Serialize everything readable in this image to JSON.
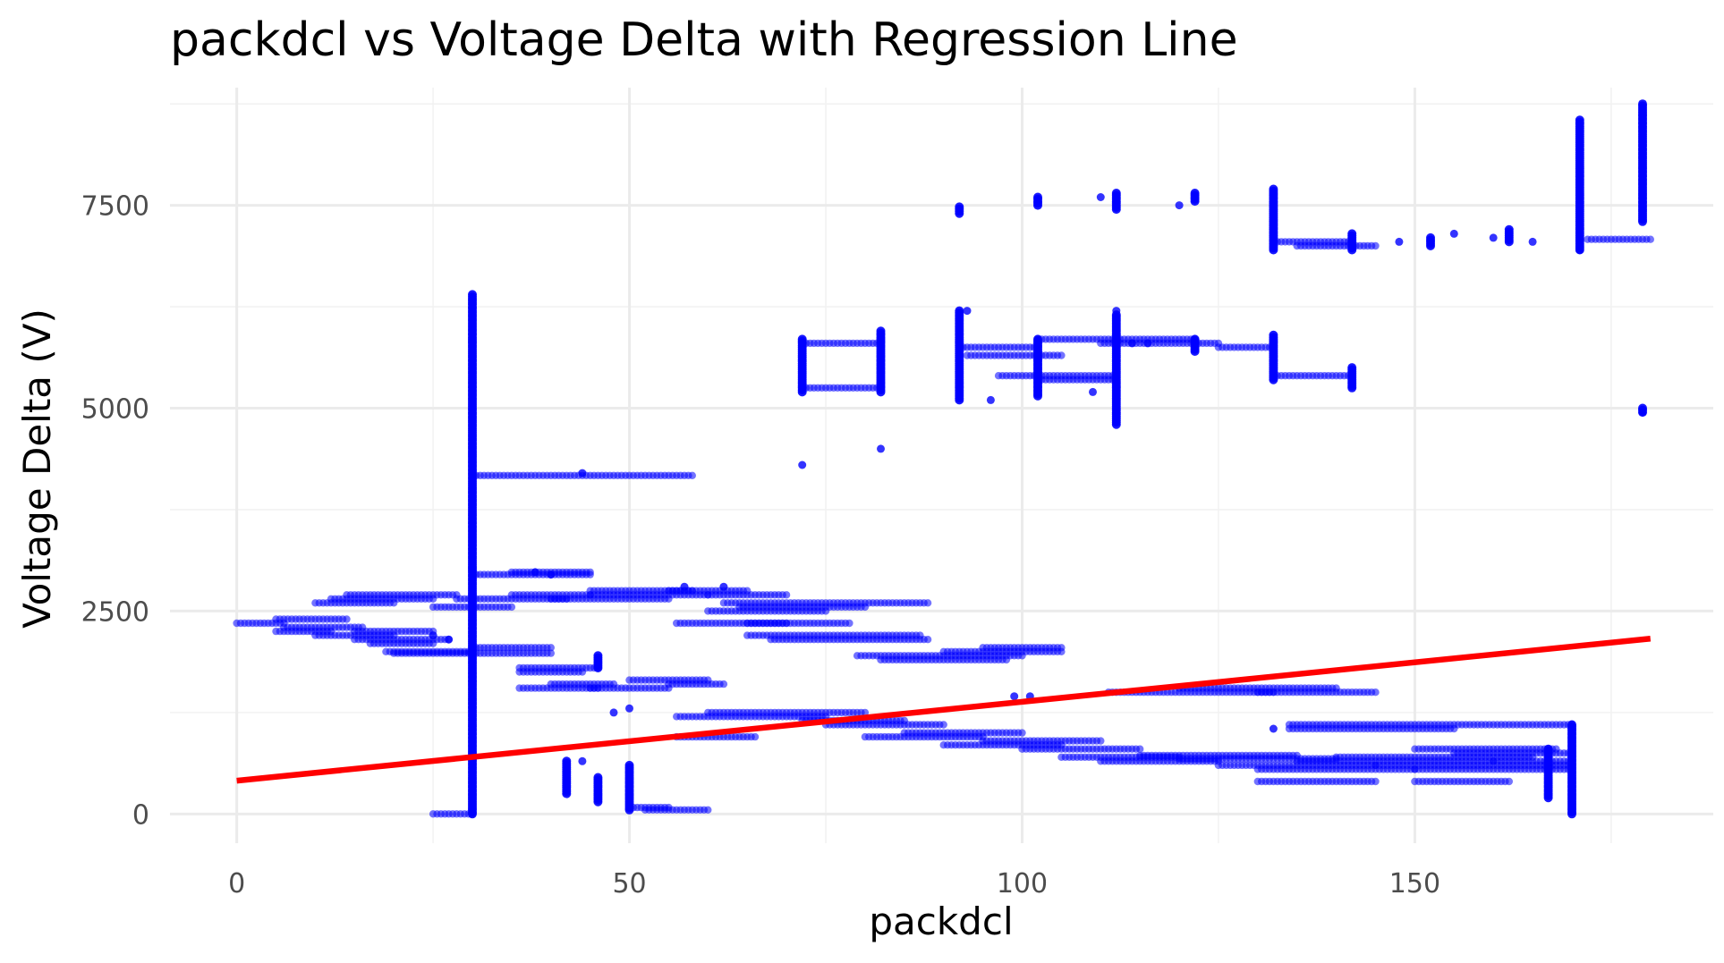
{
  "colors": {
    "points": "#0000ff",
    "regression": "#ff0000",
    "grid": "#ebebeb",
    "tick_text": "#4d4d4d"
  },
  "chart_data": {
    "type": "scatter",
    "title": "packdcl  vs Voltage Delta with Regression Line",
    "xlabel": "packdcl",
    "ylabel": "Voltage Delta (V)",
    "xlim": [
      -8.5,
      188
    ],
    "ylim": [
      -360,
      8950
    ],
    "x_ticks": [
      0,
      50,
      100,
      150
    ],
    "x_tick_labels": [
      "0",
      "50",
      "100",
      "150"
    ],
    "y_ticks": [
      0,
      2500,
      5000,
      7500
    ],
    "y_tick_labels": [
      "0",
      "2500",
      "5000",
      "7500"
    ],
    "grid": true,
    "legend": "none",
    "regression_line": {
      "x": [
        0,
        180
      ],
      "y": [
        410,
        2160
      ]
    },
    "horizontal_runs": [
      {
        "x": [
          0,
          6
        ],
        "y": 2350
      },
      {
        "x": [
          5,
          14
        ],
        "y": 2400
      },
      {
        "x": [
          5,
          12
        ],
        "y": 2250
      },
      {
        "x": [
          10,
          20
        ],
        "y": 2600
      },
      {
        "x": [
          12,
          25
        ],
        "y": 2650
      },
      {
        "x": [
          14,
          28
        ],
        "y": 2700
      },
      {
        "x": [
          6,
          16
        ],
        "y": 2300
      },
      {
        "x": [
          10,
          20
        ],
        "y": 2200
      },
      {
        "x": [
          15,
          25
        ],
        "y": 2250
      },
      {
        "x": [
          15,
          27
        ],
        "y": 2150
      },
      {
        "x": [
          17,
          25
        ],
        "y": 2100
      },
      {
        "x": [
          19,
          30
        ],
        "y": 2000
      },
      {
        "x": [
          20,
          40
        ],
        "y": 1980
      },
      {
        "x": [
          30,
          40
        ],
        "y": 2050
      },
      {
        "x": [
          25,
          35
        ],
        "y": 2550
      },
      {
        "x": [
          28,
          42
        ],
        "y": 2650
      },
      {
        "x": [
          30,
          45
        ],
        "y": 2950
      },
      {
        "x": [
          35,
          45
        ],
        "y": 2980
      },
      {
        "x": [
          35,
          45
        ],
        "y": 2700
      },
      {
        "x": [
          40,
          55
        ],
        "y": 2650
      },
      {
        "x": [
          45,
          58
        ],
        "y": 2750
      },
      {
        "x": [
          45,
          60
        ],
        "y": 2700
      },
      {
        "x": [
          55,
          65
        ],
        "y": 2750
      },
      {
        "x": [
          60,
          70
        ],
        "y": 2700
      },
      {
        "x": [
          36,
          46
        ],
        "y": 1800
      },
      {
        "x": [
          36,
          44
        ],
        "y": 1750
      },
      {
        "x": [
          36,
          46
        ],
        "y": 1550
      },
      {
        "x": [
          40,
          48
        ],
        "y": 1600
      },
      {
        "x": [
          45,
          55
        ],
        "y": 1550
      },
      {
        "x": [
          50,
          60
        ],
        "y": 1650
      },
      {
        "x": [
          55,
          62
        ],
        "y": 1600
      },
      {
        "x": [
          30,
          58
        ],
        "y": 4170
      },
      {
        "x": [
          56,
          70
        ],
        "y": 2350
      },
      {
        "x": [
          60,
          75
        ],
        "y": 2500
      },
      {
        "x": [
          62,
          88
        ],
        "y": 2600
      },
      {
        "x": [
          64,
          80
        ],
        "y": 2550
      },
      {
        "x": [
          65,
          78
        ],
        "y": 2350
      },
      {
        "x": [
          65,
          87
        ],
        "y": 2200
      },
      {
        "x": [
          68,
          88
        ],
        "y": 2150
      },
      {
        "x": [
          79,
          100
        ],
        "y": 1950
      },
      {
        "x": [
          82,
          98
        ],
        "y": 1900
      },
      {
        "x": [
          90,
          105
        ],
        "y": 2000
      },
      {
        "x": [
          95,
          105
        ],
        "y": 2050
      },
      {
        "x": [
          56,
          75
        ],
        "y": 1200
      },
      {
        "x": [
          60,
          80
        ],
        "y": 1250
      },
      {
        "x": [
          72,
          85
        ],
        "y": 1150
      },
      {
        "x": [
          56,
          66
        ],
        "y": 950
      },
      {
        "x": [
          75,
          90
        ],
        "y": 1100
      },
      {
        "x": [
          80,
          95
        ],
        "y": 950
      },
      {
        "x": [
          85,
          100
        ],
        "y": 1000
      },
      {
        "x": [
          90,
          105
        ],
        "y": 850
      },
      {
        "x": [
          95,
          110
        ],
        "y": 900
      },
      {
        "x": [
          100,
          115
        ],
        "y": 800
      },
      {
        "x": [
          105,
          120
        ],
        "y": 700
      },
      {
        "x": [
          110,
          125
        ],
        "y": 650
      },
      {
        "x": [
          115,
          135
        ],
        "y": 720
      },
      {
        "x": [
          120,
          140
        ],
        "y": 680
      },
      {
        "x": [
          125,
          145
        ],
        "y": 600
      },
      {
        "x": [
          130,
          150
        ],
        "y": 550
      },
      {
        "x": [
          135,
          160
        ],
        "y": 650
      },
      {
        "x": [
          140,
          165
        ],
        "y": 700
      },
      {
        "x": [
          145,
          170
        ],
        "y": 600
      },
      {
        "x": [
          150,
          168
        ],
        "y": 800
      },
      {
        "x": [
          155,
          170
        ],
        "y": 750
      },
      {
        "x": [
          160,
          170
        ],
        "y": 650
      },
      {
        "x": [
          150,
          170
        ],
        "y": 550
      },
      {
        "x": [
          130,
          145
        ],
        "y": 400
      },
      {
        "x": [
          150,
          162
        ],
        "y": 400
      },
      {
        "x": [
          134,
          170
        ],
        "y": 1100
      },
      {
        "x": [
          134,
          155
        ],
        "y": 1050
      },
      {
        "x": [
          111,
          132
        ],
        "y": 1500
      },
      {
        "x": [
          120,
          140
        ],
        "y": 1550
      },
      {
        "x": [
          130,
          145
        ],
        "y": 1500
      },
      {
        "x": [
          25,
          30
        ],
        "y": 0
      },
      {
        "x": [
          50,
          55
        ],
        "y": 80
      },
      {
        "x": [
          52,
          60
        ],
        "y": 50
      },
      {
        "x": [
          72,
          82
        ],
        "y": 5800
      },
      {
        "x": [
          72,
          82
        ],
        "y": 5250
      },
      {
        "x": [
          92,
          102
        ],
        "y": 5750
      },
      {
        "x": [
          93,
          105
        ],
        "y": 5650
      },
      {
        "x": [
          97,
          112
        ],
        "y": 5400
      },
      {
        "x": [
          102,
          112
        ],
        "y": 5350
      },
      {
        "x": [
          102,
          122
        ],
        "y": 5850
      },
      {
        "x": [
          110,
          125
        ],
        "y": 5800
      },
      {
        "x": [
          125,
          132
        ],
        "y": 5750
      },
      {
        "x": [
          132,
          142
        ],
        "y": 5400
      },
      {
        "x": [
          132,
          142
        ],
        "y": 7050
      },
      {
        "x": [
          135,
          145
        ],
        "y": 7000
      },
      {
        "x": [
          172,
          180
        ],
        "y": 7080
      }
    ],
    "vertical_runs": [
      {
        "x": 30,
        "y": [
          0,
          6400
        ]
      },
      {
        "x": 170,
        "y": [
          0,
          1100
        ]
      },
      {
        "x": 171,
        "y": [
          6950,
          8550
        ]
      },
      {
        "x": 179,
        "y": [
          7300,
          8750
        ]
      },
      {
        "x": 72,
        "y": [
          5200,
          5850
        ]
      },
      {
        "x": 82,
        "y": [
          5200,
          5950
        ]
      },
      {
        "x": 92,
        "y": [
          5100,
          6200
        ]
      },
      {
        "x": 102,
        "y": [
          5150,
          5850
        ]
      },
      {
        "x": 112,
        "y": [
          4800,
          6150
        ]
      },
      {
        "x": 122,
        "y": [
          5700,
          5850
        ]
      },
      {
        "x": 132,
        "y": [
          5350,
          5900
        ]
      },
      {
        "x": 142,
        "y": [
          5250,
          5500
        ]
      },
      {
        "x": 132,
        "y": [
          6950,
          7700
        ]
      },
      {
        "x": 142,
        "y": [
          6950,
          7150
        ]
      },
      {
        "x": 152,
        "y": [
          7000,
          7100
        ]
      },
      {
        "x": 162,
        "y": [
          7050,
          7200
        ]
      },
      {
        "x": 92,
        "y": [
          7400,
          7480
        ]
      },
      {
        "x": 102,
        "y": [
          7500,
          7600
        ]
      },
      {
        "x": 112,
        "y": [
          7450,
          7650
        ]
      },
      {
        "x": 122,
        "y": [
          7550,
          7650
        ]
      },
      {
        "x": 42,
        "y": [
          250,
          650
        ]
      },
      {
        "x": 46,
        "y": [
          150,
          450
        ]
      },
      {
        "x": 50,
        "y": [
          50,
          600
        ]
      },
      {
        "x": 46,
        "y": [
          1800,
          1950
        ]
      },
      {
        "x": 167,
        "y": [
          200,
          800
        ]
      },
      {
        "x": 179,
        "y": [
          4950,
          5000
        ]
      }
    ],
    "isolated_points": [
      {
        "x": 44,
        "y": 4200
      },
      {
        "x": 72,
        "y": 4300
      },
      {
        "x": 82,
        "y": 4500
      },
      {
        "x": 92,
        "y": 7450
      },
      {
        "x": 93,
        "y": 6200
      },
      {
        "x": 112,
        "y": 6200
      },
      {
        "x": 110,
        "y": 7600
      },
      {
        "x": 120,
        "y": 7500
      },
      {
        "x": 132,
        "y": 7650
      },
      {
        "x": 148,
        "y": 7050
      },
      {
        "x": 155,
        "y": 7150
      },
      {
        "x": 160,
        "y": 7100
      },
      {
        "x": 165,
        "y": 7050
      },
      {
        "x": 171,
        "y": 6950
      },
      {
        "x": 179,
        "y": 4950
      },
      {
        "x": 114,
        "y": 5800
      },
      {
        "x": 116,
        "y": 5800
      },
      {
        "x": 96,
        "y": 5100
      },
      {
        "x": 109,
        "y": 5200
      },
      {
        "x": 99,
        "y": 1450
      },
      {
        "x": 101,
        "y": 1450
      },
      {
        "x": 132,
        "y": 1050
      },
      {
        "x": 44,
        "y": 650
      },
      {
        "x": 48,
        "y": 1250
      },
      {
        "x": 50,
        "y": 1300
      },
      {
        "x": 57,
        "y": 2800
      },
      {
        "x": 62,
        "y": 2800
      },
      {
        "x": 25,
        "y": 2200
      },
      {
        "x": 27,
        "y": 2150
      },
      {
        "x": 38,
        "y": 2980
      },
      {
        "x": 40,
        "y": 2950
      }
    ]
  }
}
